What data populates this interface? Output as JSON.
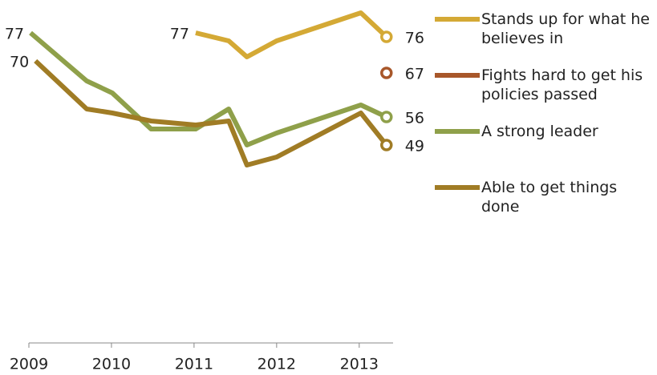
{
  "chart_data": {
    "type": "line",
    "xlim": [
      2009,
      2013.41
    ],
    "xticks": [
      2009,
      2010,
      2011,
      2012,
      2013
    ],
    "ylim": [
      0,
      85
    ],
    "series": [
      {
        "name": "Stands up for what he believes in",
        "color": "#d4a935",
        "x": [
          2011.02,
          2011.42,
          2011.64,
          2012.0,
          2013.02,
          2013.33
        ],
        "values": [
          77,
          75,
          71,
          75,
          82,
          76
        ]
      },
      {
        "name": "Fights hard to get his policies passed",
        "color": "#a8572a",
        "x": [
          2013.33
        ],
        "values": [
          67
        ]
      },
      {
        "name": "A strong leader",
        "color": "#8fa04a",
        "x": [
          2009.02,
          2009.7,
          2010.01,
          2010.48,
          2011.02,
          2011.42,
          2011.64,
          2012.0,
          2013.02,
          2013.33
        ],
        "values": [
          77,
          65,
          62,
          53,
          53,
          58,
          49,
          52,
          59,
          56
        ]
      },
      {
        "name": "Able to get things done",
        "color": "#a07c25",
        "x": [
          2009.08,
          2009.7,
          2010.01,
          2010.48,
          2011.02,
          2011.42,
          2011.64,
          2012.0,
          2013.02,
          2013.33
        ],
        "values": [
          70,
          58,
          57,
          55,
          54,
          55,
          44,
          46,
          57,
          49
        ]
      }
    ]
  }
}
